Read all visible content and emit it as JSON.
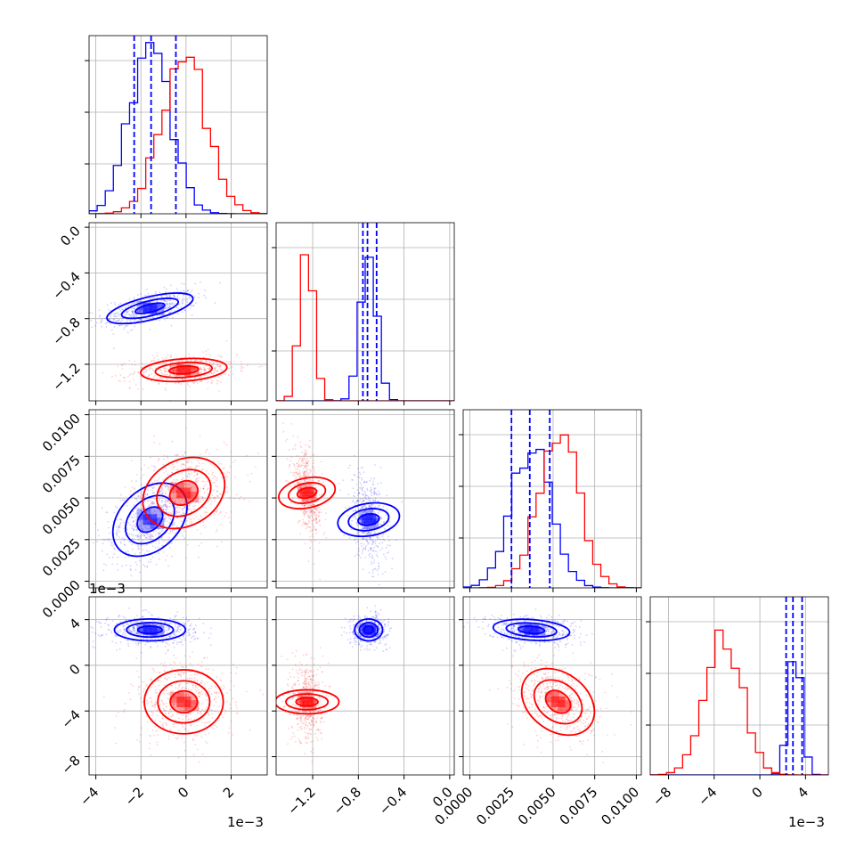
{
  "colors": {
    "series_a": "#0000ff",
    "series_b": "#ff0000",
    "grid": "#b0b0b0",
    "frame": "#000000"
  },
  "chart_data": {
    "type": "corner",
    "title": "",
    "grid": true,
    "params": [
      {
        "range": [
          -4.3,
          3.6
        ],
        "ticks": [
          -4,
          -2,
          0,
          2
        ],
        "tick_labels": [
          "−4",
          "−2",
          "0",
          "2"
        ],
        "offset": "1e−3"
      },
      {
        "range": [
          -1.52,
          0.04
        ],
        "ticks": [
          -1.2,
          -0.8,
          -0.4,
          0.0
        ],
        "tick_labels": [
          "−1.2",
          "−0.8",
          "−0.4",
          "0.0"
        ],
        "offset": ""
      },
      {
        "range": [
          -0.0004,
          0.0103
        ],
        "ticks": [
          0.0,
          0.0025,
          0.005,
          0.0075,
          0.01
        ],
        "tick_labels": [
          "0.0000",
          "0.0025",
          "0.0050",
          "0.0075",
          "0.0100"
        ],
        "offset": ""
      },
      {
        "range": [
          -9.6,
          6.0
        ],
        "ticks": [
          -8,
          -4,
          0,
          4
        ],
        "tick_labels": [
          "−8",
          "−4",
          "0",
          "4"
        ],
        "offset": "1e−3"
      }
    ],
    "row_offset_label": "1e−3",
    "series": [
      {
        "color": "#0000ff",
        "means": [
          -1.6,
          -0.71,
          0.0037,
          3.1
        ],
        "sigmas": [
          0.9,
          0.07,
          0.0012,
          0.55
        ],
        "quantiles": [
          [
            -2.3,
            -1.55,
            -0.45
          ],
          [
            -0.76,
            -0.72,
            -0.64
          ],
          [
            0.0025,
            0.0036,
            0.0048
          ],
          [
            2.3,
            2.9,
            3.7
          ]
        ],
        "hist_peaks": [
          0.95,
          0.87,
          0.8,
          0.8
        ]
      },
      {
        "color": "#ff0000",
        "means": [
          -0.1,
          -1.25,
          0.0053,
          -3.2
        ],
        "sigmas": [
          1.0,
          0.06,
          0.0012,
          1.6
        ],
        "quantiles": [],
        "hist_peaks": [
          0.9,
          0.95,
          0.9,
          0.82
        ]
      }
    ],
    "correlations": [
      {
        "pair": [
          0,
          1
        ],
        "series_a": 0.55,
        "series_b": 0.2
      },
      {
        "pair": [
          0,
          2
        ],
        "series_a": 0.45,
        "series_b": 0.2
      },
      {
        "pair": [
          1,
          2
        ],
        "series_a": -0.35,
        "series_b": -0.55
      },
      {
        "pair": [
          0,
          3
        ],
        "series_a": 0.0,
        "series_b": 0.0
      },
      {
        "pair": [
          1,
          3
        ],
        "series_a": 0.0,
        "series_b": 0.0
      },
      {
        "pair": [
          2,
          3
        ],
        "series_a": -0.2,
        "series_b": -0.3
      }
    ]
  }
}
